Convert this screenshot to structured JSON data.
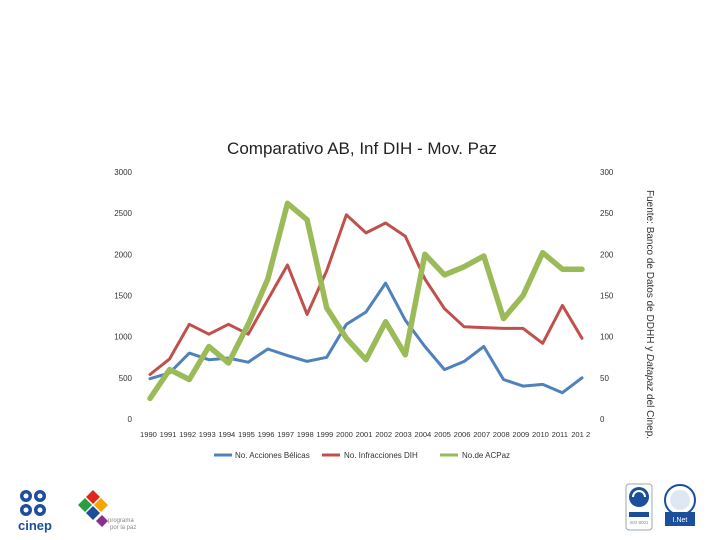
{
  "chart_data": {
    "type": "line",
    "title": "Comparativo AB, Inf DIH - Mov. Paz",
    "categories": [
      "1990",
      "1991",
      "1992",
      "1993",
      "1994",
      "1995",
      "1996",
      "1997",
      "1998",
      "1999",
      "2000",
      "2001",
      "2002",
      "2003",
      "2004",
      "2005",
      "2006",
      "2007",
      "2008",
      "2009",
      "2010",
      "2011",
      "2012"
    ],
    "x_tick_labels": [
      "1990",
      "1991",
      "1992",
      "1993",
      "1994",
      "1995",
      "1996",
      "1997",
      "1998",
      "1999",
      "2000",
      "2001",
      "2002",
      "2003",
      "2004",
      "2005",
      "2006",
      "2007",
      "2008",
      "2009",
      "2010",
      "2011",
      "201 2"
    ],
    "y_left": {
      "ticks": [
        "0",
        "500",
        "1000",
        "1500",
        "2000",
        "2500",
        "3000"
      ],
      "ylim": [
        0,
        3000
      ]
    },
    "y_right": {
      "ticks": [
        "0",
        "50",
        "100",
        "150",
        "200",
        "250",
        "300"
      ],
      "ylim": [
        0,
        300
      ]
    },
    "series": [
      {
        "name": "No. Acciones Bélicas",
        "axis": "left",
        "color": "#4f81bd",
        "values": [
          490,
          560,
          800,
          720,
          740,
          690,
          850,
          770,
          700,
          750,
          1150,
          1300,
          1650,
          1200,
          880,
          600,
          700,
          880,
          480,
          400,
          420,
          320,
          500
        ]
      },
      {
        "name": "No.  Infracciones DIH",
        "axis": "left",
        "color": "#c0504d",
        "values": [
          540,
          730,
          1150,
          1030,
          1150,
          1030,
          1450,
          1870,
          1270,
          1800,
          2480,
          2260,
          2380,
          2220,
          1700,
          1340,
          1120,
          1110,
          1100,
          1100,
          920,
          1380,
          980
        ]
      },
      {
        "name": "No.de ACPaz",
        "axis": "right",
        "color": "#9bbb59",
        "values": [
          25,
          60,
          48,
          88,
          68,
          115,
          170,
          262,
          242,
          135,
          98,
          72,
          118,
          78,
          200,
          175,
          185,
          198,
          122,
          150,
          202,
          182,
          182
        ]
      }
    ],
    "legend_position": "bottom",
    "grid": false
  },
  "side_note": {
    "main": "Fuente: Banco de Datos de DDHH y ",
    "italic": "Datapaz",
    "tail": " del Cinep."
  },
  "logos": {
    "cinep_label": "cinep",
    "programa_label_1": "programa",
    "programa_label_2": "por la paz",
    "cert_badge_text": "ISO 9001",
    "net_badge_text": "I.Net"
  },
  "colors": {
    "blue": "#4f81bd",
    "red": "#c0504d",
    "green": "#9bbb59",
    "logo_blue": "#1b4f9c"
  }
}
